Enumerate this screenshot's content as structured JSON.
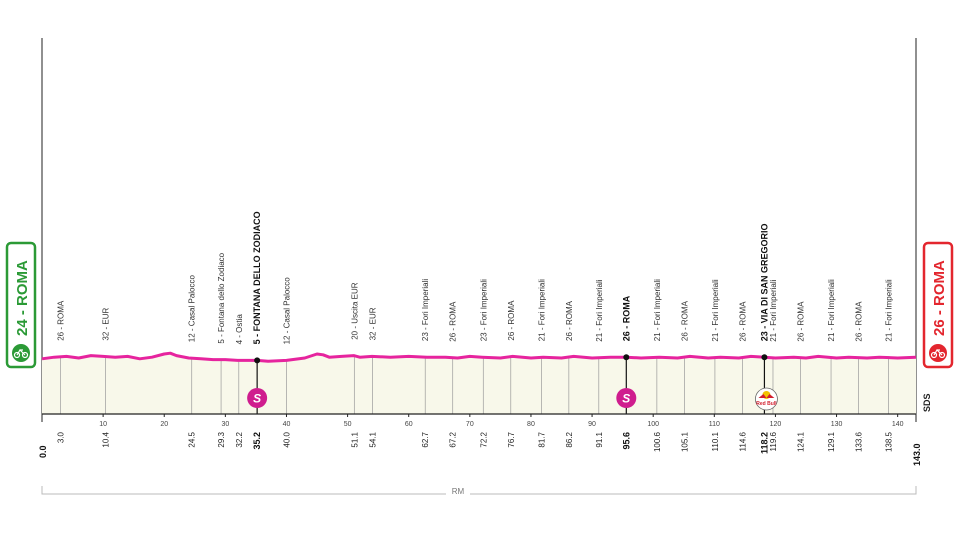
{
  "chart_data": {
    "type": "area",
    "title": "",
    "xlabel": "",
    "ylabel": "",
    "xlim": [
      0,
      143.0
    ],
    "x_ticks": [
      10,
      20,
      30,
      40,
      50,
      60,
      70,
      80,
      90,
      100,
      110,
      120,
      130,
      140
    ],
    "x_tick_labels": [
      "10",
      "20",
      "30",
      "40",
      "50",
      "60",
      "70",
      "80",
      "90",
      "100",
      "110",
      "120",
      "130",
      "140"
    ],
    "start": {
      "label": "24 - ROMA",
      "km": "0.0"
    },
    "finish": {
      "label": "26 - ROMA",
      "km": "143.0"
    },
    "waypoints": [
      {
        "km": 3.0,
        "km_label": "3.0",
        "label": "26 - ROMA",
        "bold": false
      },
      {
        "km": 10.4,
        "km_label": "10.4",
        "label": "32 - EUR",
        "bold": false
      },
      {
        "km": 24.5,
        "km_label": "24.5",
        "label": "12 - Casal Palocco",
        "bold": false
      },
      {
        "km": 29.3,
        "km_label": "29.3",
        "label": "5 - Fontana dello Zodiaco",
        "bold": false
      },
      {
        "km": 32.2,
        "km_label": "32.2",
        "label": "4 - Ostia",
        "bold": false
      },
      {
        "km": 35.2,
        "km_label": "35.2",
        "label": "5 - FONTANA DELLO ZODIACO",
        "bold": true
      },
      {
        "km": 40.0,
        "km_label": "40.0",
        "label": "12 - Casal Palocco",
        "bold": false
      },
      {
        "km": 51.1,
        "km_label": "51.1",
        "label": "20 - Uscita EUR",
        "bold": false
      },
      {
        "km": 54.1,
        "km_label": "54.1",
        "label": "32 - EUR",
        "bold": false
      },
      {
        "km": 62.7,
        "km_label": "62.7",
        "label": "23 - Fori Imperiali",
        "bold": false
      },
      {
        "km": 67.2,
        "km_label": "67.2",
        "label": "26 - ROMA",
        "bold": false
      },
      {
        "km": 72.2,
        "km_label": "72.2",
        "label": "23 - Fori Imperiali",
        "bold": false
      },
      {
        "km": 76.7,
        "km_label": "76.7",
        "label": "26 - ROMA",
        "bold": false
      },
      {
        "km": 81.7,
        "km_label": "81.7",
        "label": "21 - Fori Imperiali",
        "bold": false
      },
      {
        "km": 86.2,
        "km_label": "86.2",
        "label": "26 - ROMA",
        "bold": false
      },
      {
        "km": 91.1,
        "km_label": "91.1",
        "label": "21 - Fori Imperiali",
        "bold": false
      },
      {
        "km": 95.6,
        "km_label": "95.6",
        "label": "26 - ROMA",
        "bold": true
      },
      {
        "km": 100.6,
        "km_label": "100.6",
        "label": "21 - Fori Imperiali",
        "bold": false
      },
      {
        "km": 105.1,
        "km_label": "105.1",
        "label": "26 - ROMA",
        "bold": false
      },
      {
        "km": 110.1,
        "km_label": "110.1",
        "label": "21 - Fori Imperiali",
        "bold": false
      },
      {
        "km": 114.6,
        "km_label": "114.6",
        "label": "26 - ROMA",
        "bold": false
      },
      {
        "km": 118.2,
        "km_label": "118.2",
        "label": "23 - VIA DI SAN GREGORIO",
        "bold": true
      },
      {
        "km": 119.6,
        "km_label": "119.6",
        "label": "21 - Fori Imperiali",
        "bold": false
      },
      {
        "km": 124.1,
        "km_label": "124.1",
        "label": "26 - ROMA",
        "bold": false
      },
      {
        "km": 129.1,
        "km_label": "129.1",
        "label": "21 - Fori Imperiali",
        "bold": false
      },
      {
        "km": 133.6,
        "km_label": "133.6",
        "label": "26 - ROMA",
        "bold": false
      },
      {
        "km": 138.5,
        "km_label": "138.5",
        "label": "21 - Fori Imperiali",
        "bold": false
      }
    ],
    "markers": [
      {
        "km": 35.2,
        "type": "sprint",
        "symbol": "S"
      },
      {
        "km": 95.6,
        "type": "sprint",
        "symbol": "S"
      },
      {
        "km": 118.2,
        "type": "red-bull-km",
        "symbol": "Red Bull"
      }
    ],
    "profile_altitude": [
      [
        0,
        24
      ],
      [
        2,
        26
      ],
      [
        4,
        27
      ],
      [
        6,
        25
      ],
      [
        8,
        28
      ],
      [
        10,
        27
      ],
      [
        12,
        26
      ],
      [
        14,
        27
      ],
      [
        16,
        24
      ],
      [
        18,
        26
      ],
      [
        20,
        30
      ],
      [
        21,
        31
      ],
      [
        22,
        28
      ],
      [
        24,
        25
      ],
      [
        26,
        24
      ],
      [
        28,
        23
      ],
      [
        30,
        23
      ],
      [
        32,
        22
      ],
      [
        34,
        22
      ],
      [
        35.2,
        22
      ],
      [
        37,
        21
      ],
      [
        40,
        22
      ],
      [
        43,
        25
      ],
      [
        45,
        30
      ],
      [
        46,
        29
      ],
      [
        47,
        26
      ],
      [
        49,
        27
      ],
      [
        51,
        28
      ],
      [
        52,
        26
      ],
      [
        54,
        27
      ],
      [
        57,
        26
      ],
      [
        60,
        27
      ],
      [
        63,
        26
      ],
      [
        66,
        26
      ],
      [
        68,
        25
      ],
      [
        70,
        27
      ],
      [
        72,
        26
      ],
      [
        75,
        25
      ],
      [
        77,
        27
      ],
      [
        80,
        25
      ],
      [
        82,
        26
      ],
      [
        85,
        25
      ],
      [
        87,
        27
      ],
      [
        90,
        25
      ],
      [
        93,
        26
      ],
      [
        95.6,
        26
      ],
      [
        98,
        25
      ],
      [
        101,
        26
      ],
      [
        104,
        25
      ],
      [
        106,
        27
      ],
      [
        109,
        25
      ],
      [
        111,
        26
      ],
      [
        114,
        25
      ],
      [
        116,
        27
      ],
      [
        118.2,
        26
      ],
      [
        120,
        25
      ],
      [
        123,
        26
      ],
      [
        125,
        25
      ],
      [
        127,
        27
      ],
      [
        130,
        25
      ],
      [
        132,
        26
      ],
      [
        135,
        25
      ],
      [
        137,
        26
      ],
      [
        140,
        25
      ],
      [
        143,
        26
      ]
    ],
    "total_label": "RM",
    "footer_text": "SDS",
    "colors": {
      "profile": "#e6249e",
      "fill": "#f8f8ea",
      "start": "#2b9a36",
      "finish": "#e3262e",
      "sprint": "#cf1d8e"
    },
    "icons": {
      "start": "bicycle-icon",
      "finish": "bicycle-icon",
      "sprint": "sprint-icon",
      "km": "red-bull-icon"
    }
  }
}
